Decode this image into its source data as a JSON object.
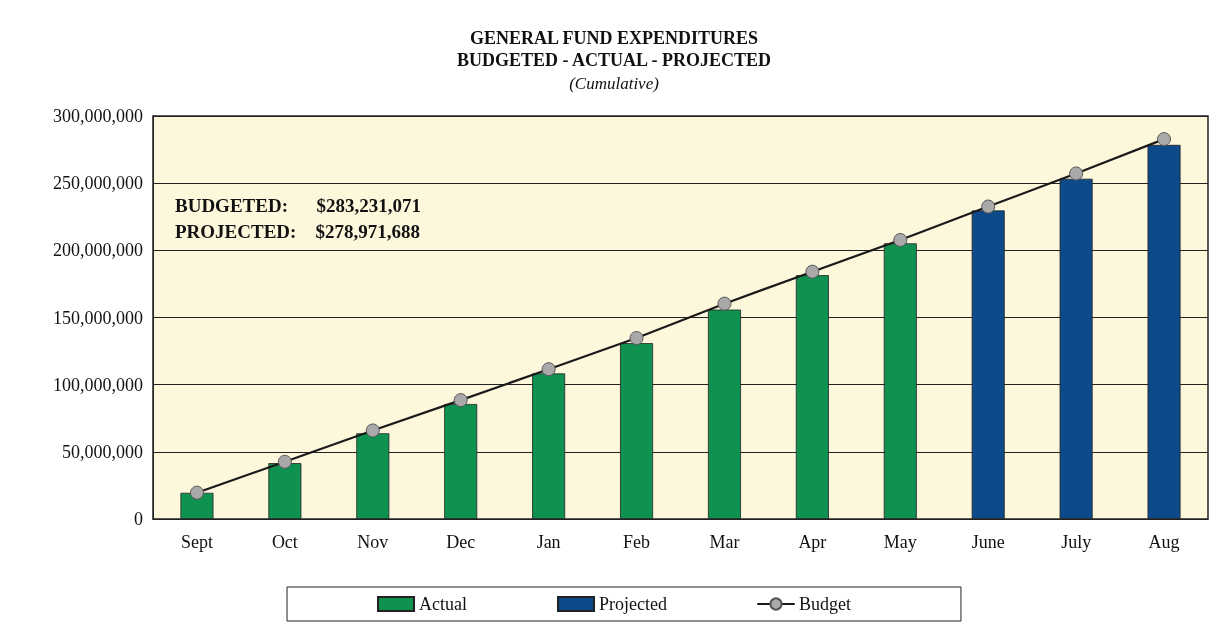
{
  "chart_data": {
    "type": "bar",
    "title": "GENERAL FUND EXPENDITURES\nBUDGETED - ACTUAL - PROJECTED",
    "subtitle": "(Cumulative)",
    "categories": [
      "Sept",
      "Oct",
      "Nov",
      "Dec",
      "Jan",
      "Feb",
      "Mar",
      "Apr",
      "May",
      "June",
      "July",
      "Aug"
    ],
    "series": [
      {
        "name": "Actual",
        "color": "#0f9150",
        "values": [
          19500000,
          41600000,
          63800000,
          85600000,
          108400000,
          130900000,
          155900000,
          181500000,
          205200000,
          null,
          null,
          null
        ]
      },
      {
        "name": "Projected",
        "color": "#0d4a8a",
        "values": [
          null,
          null,
          null,
          null,
          null,
          null,
          null,
          null,
          null,
          229700000,
          253300000,
          278500000
        ]
      },
      {
        "name": "Budget",
        "type": "line",
        "color": "#1a1a1a",
        "values": [
          19600000,
          42600000,
          65900000,
          88500000,
          111500000,
          134700000,
          160300000,
          184100000,
          207700000,
          232600000,
          257200000,
          282800000
        ]
      }
    ],
    "ylim": [
      0,
      300000000
    ],
    "yticks": [
      {
        "value": 0,
        "label": "0"
      },
      {
        "value": 50000000,
        "label": "50,000,000"
      },
      {
        "value": 100000000,
        "label": "100,000,000"
      },
      {
        "value": 150000000,
        "label": "150,000,000"
      },
      {
        "value": 200000000,
        "label": "200,000,000"
      },
      {
        "value": 250000000,
        "label": "250,000,000"
      },
      {
        "value": 300000000,
        "label": "300,000,000"
      }
    ],
    "grid": "y",
    "legend": "bottom",
    "marker": "circle",
    "annotations": [
      "BUDGETED:      $283,231,071",
      "PROJECTED:    $278,971,688"
    ]
  }
}
